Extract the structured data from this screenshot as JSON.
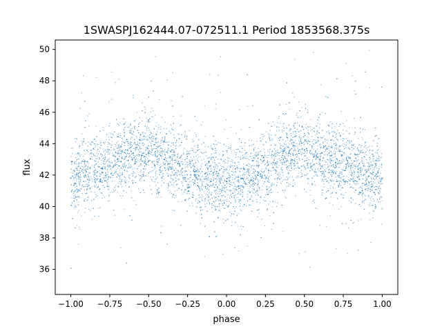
{
  "chart_data": {
    "type": "scatter",
    "title": "1SWASPJ162444.07-072511.1 Period 1853568.375s",
    "xlabel": "phase",
    "ylabel": "flux",
    "xlim": [
      -1.1,
      1.1
    ],
    "ylim": [
      34.4,
      50.6
    ],
    "xticks": [
      -1.0,
      -0.75,
      -0.5,
      -0.25,
      0.0,
      0.25,
      0.5,
      0.75,
      1.0
    ],
    "xtick_labels": [
      "−1.00",
      "−0.75",
      "−0.50",
      "−0.25",
      "0.00",
      "0.25",
      "0.50",
      "0.75",
      "1.00"
    ],
    "yticks": [
      36,
      38,
      40,
      42,
      44,
      46,
      48,
      50
    ],
    "ytick_labels": [
      "36",
      "38",
      "40",
      "42",
      "44",
      "46",
      "48",
      "50"
    ],
    "grid": false,
    "legend": "none",
    "marker_color": "#1f77b4",
    "series": [
      {
        "x": [
          -1.0,
          -0.9,
          -0.8,
          -0.7,
          -0.6,
          -0.5,
          -0.4,
          -0.3,
          -0.2,
          -0.1,
          0.0,
          0.1,
          0.2,
          0.3,
          0.4,
          0.5,
          0.6,
          0.7,
          0.8,
          0.9,
          1.0
        ],
        "y": [
          41.8,
          42.2,
          42.4,
          43.0,
          43.4,
          43.4,
          43.0,
          42.6,
          42.0,
          41.6,
          41.6,
          41.8,
          42.0,
          42.8,
          43.4,
          43.6,
          43.0,
          42.8,
          42.6,
          42.2,
          41.8
        ]
      }
    ]
  }
}
